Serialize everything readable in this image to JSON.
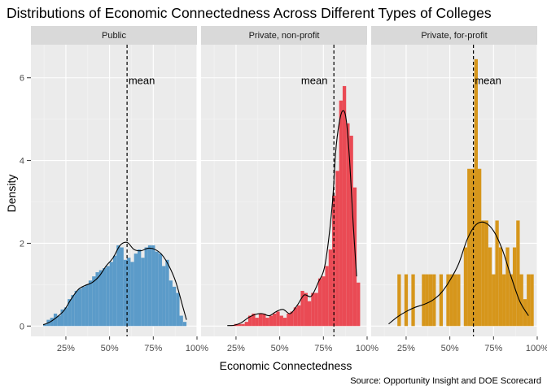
{
  "chart_data": {
    "type": "histogram",
    "title": "Distributions of Economic Connectedness Across Different Types of Colleges",
    "xlabel": "Economic Connectedness",
    "ylabel": "Density",
    "caption": "Source: Opportunity Insight and DOE Scorecard",
    "xlim": [
      0.05,
      1.0
    ],
    "ylim": [
      -0.25,
      6.8
    ],
    "x_ticks": [
      0.25,
      0.5,
      0.75,
      1.0
    ],
    "x_tick_labels": [
      "25%",
      "50%",
      "75%",
      "100%"
    ],
    "y_ticks": [
      0,
      2,
      4,
      6
    ],
    "y_tick_labels": [
      "0",
      "2",
      "4",
      "6"
    ],
    "mean_label": "mean",
    "bin_width": 0.02,
    "panels": [
      {
        "name": "Public",
        "color": "#5b9bc9",
        "mean": 0.6,
        "bins": [
          [
            0.13,
            0.05
          ],
          [
            0.15,
            0.15
          ],
          [
            0.17,
            0.2
          ],
          [
            0.19,
            0.3
          ],
          [
            0.21,
            0.25
          ],
          [
            0.23,
            0.4
          ],
          [
            0.25,
            0.45
          ],
          [
            0.27,
            0.65
          ],
          [
            0.29,
            0.75
          ],
          [
            0.31,
            0.85
          ],
          [
            0.33,
            0.9
          ],
          [
            0.35,
            0.95
          ],
          [
            0.37,
            1.0
          ],
          [
            0.39,
            1.1
          ],
          [
            0.41,
            1.2
          ],
          [
            0.43,
            1.3
          ],
          [
            0.45,
            1.35
          ],
          [
            0.47,
            1.4
          ],
          [
            0.49,
            1.45
          ],
          [
            0.51,
            1.55
          ],
          [
            0.53,
            1.7
          ],
          [
            0.55,
            1.95
          ],
          [
            0.57,
            1.9
          ],
          [
            0.59,
            1.6
          ],
          [
            0.61,
            1.65
          ],
          [
            0.63,
            1.55
          ],
          [
            0.65,
            1.75
          ],
          [
            0.67,
            1.85
          ],
          [
            0.69,
            1.65
          ],
          [
            0.71,
            1.9
          ],
          [
            0.73,
            1.95
          ],
          [
            0.75,
            1.95
          ],
          [
            0.77,
            1.8
          ],
          [
            0.79,
            1.75
          ],
          [
            0.81,
            1.45
          ],
          [
            0.83,
            1.6
          ],
          [
            0.85,
            1.1
          ],
          [
            0.87,
            0.95
          ],
          [
            0.89,
            0.8
          ],
          [
            0.91,
            0.25
          ],
          [
            0.93,
            0.1
          ]
        ],
        "density": [
          [
            0.12,
            0.03
          ],
          [
            0.16,
            0.1
          ],
          [
            0.2,
            0.22
          ],
          [
            0.24,
            0.38
          ],
          [
            0.28,
            0.65
          ],
          [
            0.32,
            0.88
          ],
          [
            0.36,
            0.98
          ],
          [
            0.4,
            1.05
          ],
          [
            0.44,
            1.2
          ],
          [
            0.48,
            1.45
          ],
          [
            0.52,
            1.65
          ],
          [
            0.56,
            1.95
          ],
          [
            0.6,
            2.02
          ],
          [
            0.64,
            1.85
          ],
          [
            0.68,
            1.82
          ],
          [
            0.72,
            1.88
          ],
          [
            0.76,
            1.85
          ],
          [
            0.8,
            1.72
          ],
          [
            0.84,
            1.45
          ],
          [
            0.88,
            1.05
          ],
          [
            0.92,
            0.45
          ],
          [
            0.94,
            0.15
          ]
        ]
      },
      {
        "name": "Private, non-profit",
        "color": "#ea4a54",
        "mean": 0.81,
        "bins": [
          [
            0.23,
            0.02
          ],
          [
            0.25,
            0.05
          ],
          [
            0.27,
            0.05
          ],
          [
            0.29,
            0.05
          ],
          [
            0.31,
            0.1
          ],
          [
            0.33,
            0.25
          ],
          [
            0.35,
            0.3
          ],
          [
            0.37,
            0.2
          ],
          [
            0.39,
            0.3
          ],
          [
            0.41,
            0.3
          ],
          [
            0.43,
            0.2
          ],
          [
            0.45,
            0.25
          ],
          [
            0.47,
            0.3
          ],
          [
            0.49,
            0.35
          ],
          [
            0.51,
            0.25
          ],
          [
            0.53,
            0.2
          ],
          [
            0.55,
            0.3
          ],
          [
            0.57,
            0.35
          ],
          [
            0.59,
            0.45
          ],
          [
            0.61,
            0.5
          ],
          [
            0.63,
            0.85
          ],
          [
            0.65,
            0.8
          ],
          [
            0.67,
            0.6
          ],
          [
            0.69,
            0.8
          ],
          [
            0.71,
            0.8
          ],
          [
            0.73,
            1.15
          ],
          [
            0.75,
            1.2
          ],
          [
            0.77,
            1.45
          ],
          [
            0.79,
            1.85
          ],
          [
            0.81,
            3.15
          ],
          [
            0.83,
            3.75
          ],
          [
            0.85,
            5.45
          ],
          [
            0.87,
            5.8
          ],
          [
            0.89,
            4.9
          ],
          [
            0.91,
            4.6
          ],
          [
            0.93,
            3.35
          ],
          [
            0.95,
            1.05
          ]
        ],
        "density": [
          [
            0.2,
            0.01
          ],
          [
            0.24,
            0.02
          ],
          [
            0.28,
            0.08
          ],
          [
            0.32,
            0.2
          ],
          [
            0.36,
            0.28
          ],
          [
            0.4,
            0.3
          ],
          [
            0.44,
            0.25
          ],
          [
            0.48,
            0.35
          ],
          [
            0.52,
            0.4
          ],
          [
            0.56,
            0.3
          ],
          [
            0.6,
            0.5
          ],
          [
            0.64,
            0.75
          ],
          [
            0.68,
            0.72
          ],
          [
            0.72,
            1.05
          ],
          [
            0.76,
            1.5
          ],
          [
            0.8,
            2.9
          ],
          [
            0.82,
            4.2
          ],
          [
            0.84,
            4.9
          ],
          [
            0.86,
            5.2
          ],
          [
            0.88,
            5.0
          ],
          [
            0.9,
            4.0
          ],
          [
            0.92,
            2.5
          ],
          [
            0.94,
            1.2
          ]
        ]
      },
      {
        "name": "Private, for-profit",
        "color": "#d6961b",
        "mean": 0.635,
        "bins": [
          [
            0.21,
            1.25
          ],
          [
            0.25,
            1.25
          ],
          [
            0.29,
            1.25
          ],
          [
            0.35,
            1.25
          ],
          [
            0.37,
            1.25
          ],
          [
            0.39,
            1.25
          ],
          [
            0.41,
            1.25
          ],
          [
            0.45,
            1.25
          ],
          [
            0.49,
            1.25
          ],
          [
            0.51,
            1.25
          ],
          [
            0.53,
            1.25
          ],
          [
            0.55,
            1.25
          ],
          [
            0.59,
            1.9
          ],
          [
            0.61,
            3.8
          ],
          [
            0.63,
            3.8
          ],
          [
            0.65,
            6.45
          ],
          [
            0.67,
            3.8
          ],
          [
            0.69,
            2.55
          ],
          [
            0.71,
            2.55
          ],
          [
            0.73,
            1.9
          ],
          [
            0.75,
            1.25
          ],
          [
            0.77,
            2.55
          ],
          [
            0.79,
            1.9
          ],
          [
            0.81,
            1.25
          ],
          [
            0.83,
            1.9
          ],
          [
            0.85,
            1.25
          ],
          [
            0.87,
            1.9
          ],
          [
            0.89,
            2.55
          ],
          [
            0.91,
            1.25
          ],
          [
            0.93,
            0.65
          ],
          [
            0.95,
            1.25
          ],
          [
            0.97,
            1.25
          ]
        ],
        "density": [
          [
            0.15,
            0.05
          ],
          [
            0.2,
            0.22
          ],
          [
            0.25,
            0.35
          ],
          [
            0.3,
            0.45
          ],
          [
            0.35,
            0.52
          ],
          [
            0.4,
            0.62
          ],
          [
            0.45,
            0.8
          ],
          [
            0.5,
            1.1
          ],
          [
            0.55,
            1.5
          ],
          [
            0.6,
            2.1
          ],
          [
            0.65,
            2.45
          ],
          [
            0.7,
            2.5
          ],
          [
            0.75,
            2.3
          ],
          [
            0.8,
            1.85
          ],
          [
            0.85,
            1.2
          ],
          [
            0.9,
            0.6
          ],
          [
            0.95,
            0.25
          ]
        ]
      }
    ]
  }
}
